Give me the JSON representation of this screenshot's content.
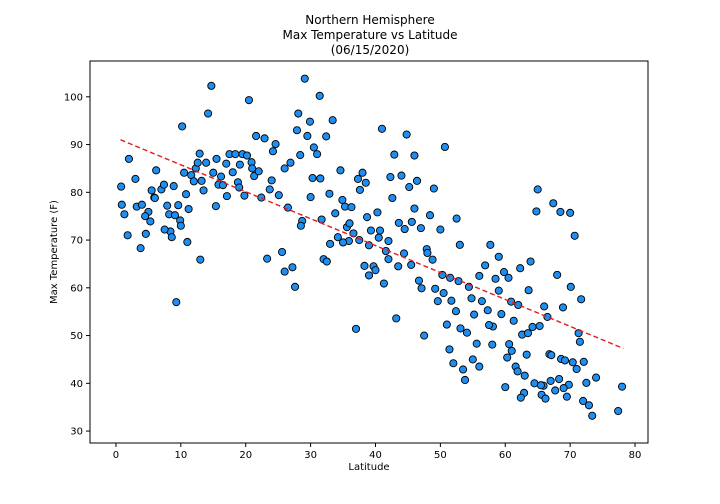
{
  "chart_data": {
    "type": "scatter",
    "title_lines": [
      "Northern Hemisphere",
      "Max Temperature vs Latitude",
      "(06/15/2020)"
    ],
    "xlabel": "Latitude",
    "ylabel": "Max Temperature (F)",
    "xlim": [
      -4,
      82
    ],
    "ylim": [
      27.5,
      107.5
    ],
    "xticks": [
      0,
      10,
      20,
      30,
      40,
      50,
      60,
      70,
      80
    ],
    "yticks": [
      30,
      40,
      50,
      60,
      70,
      80,
      90,
      100
    ],
    "grid": false,
    "marker_color": "#1f8ef1",
    "marker_edge_color": "#000000",
    "regression": {
      "color": "#e31a1c",
      "style": "dashed",
      "x": [
        0.7,
        78.2
      ],
      "y": [
        91.0,
        47.3
      ]
    },
    "points": [
      [
        0.8,
        81.2
      ],
      [
        0.9,
        77.4
      ],
      [
        1.3,
        75.4
      ],
      [
        1.8,
        71.0
      ],
      [
        3.0,
        82.8
      ],
      [
        3.2,
        77.0
      ],
      [
        3.8,
        68.3
      ],
      [
        4.0,
        77.4
      ],
      [
        4.6,
        71.3
      ],
      [
        5.0,
        75.9
      ],
      [
        5.3,
        73.9
      ],
      [
        5.5,
        80.4
      ],
      [
        5.9,
        78.9
      ],
      [
        6.2,
        84.6
      ],
      [
        7.0,
        80.6
      ],
      [
        7.4,
        81.6
      ],
      [
        7.9,
        77.2
      ],
      [
        8.2,
        75.4
      ],
      [
        8.4,
        71.8
      ],
      [
        8.6,
        70.6
      ],
      [
        8.9,
        81.3
      ],
      [
        9.1,
        75.2
      ],
      [
        9.3,
        57.0
      ],
      [
        9.6,
        77.3
      ],
      [
        9.9,
        74.1
      ],
      [
        10.2,
        93.8
      ],
      [
        10.5,
        84.1
      ],
      [
        10.8,
        79.6
      ],
      [
        11.2,
        76.5
      ],
      [
        11.6,
        83.6
      ],
      [
        12.0,
        82.3
      ],
      [
        12.3,
        85.0
      ],
      [
        12.6,
        86.2
      ],
      [
        12.9,
        88.1
      ],
      [
        13.2,
        82.4
      ],
      [
        13.5,
        80.4
      ],
      [
        13.9,
        86.2
      ],
      [
        14.2,
        96.5
      ],
      [
        14.7,
        102.3
      ],
      [
        15.0,
        84.1
      ],
      [
        15.4,
        77.1
      ],
      [
        15.8,
        81.6
      ],
      [
        16.2,
        83.3
      ],
      [
        16.5,
        81.5
      ],
      [
        17.1,
        79.2
      ],
      [
        17.5,
        88.0
      ],
      [
        18.0,
        84.2
      ],
      [
        18.4,
        88.0
      ],
      [
        18.8,
        82.1
      ],
      [
        19.1,
        85.8
      ],
      [
        19.5,
        88.0
      ],
      [
        19.8,
        79.3
      ],
      [
        20.2,
        87.7
      ],
      [
        20.5,
        99.3
      ],
      [
        20.9,
        86.3
      ],
      [
        21.3,
        83.4
      ],
      [
        21.6,
        91.8
      ],
      [
        22.0,
        84.4
      ],
      [
        22.4,
        78.9
      ],
      [
        22.9,
        91.3
      ],
      [
        23.3,
        66.1
      ],
      [
        23.7,
        80.6
      ],
      [
        24.2,
        88.6
      ],
      [
        24.6,
        90.1
      ],
      [
        25.1,
        79.4
      ],
      [
        25.6,
        67.5
      ],
      [
        26.0,
        63.4
      ],
      [
        26.5,
        76.8
      ],
      [
        26.9,
        86.2
      ],
      [
        27.2,
        64.3
      ],
      [
        27.6,
        60.2
      ],
      [
        27.9,
        93.0
      ],
      [
        28.1,
        96.5
      ],
      [
        28.4,
        87.8
      ],
      [
        28.7,
        74.0
      ],
      [
        29.1,
        103.8
      ],
      [
        29.5,
        91.8
      ],
      [
        29.9,
        94.8
      ],
      [
        30.3,
        83.0
      ],
      [
        30.5,
        89.4
      ],
      [
        31.0,
        88.0
      ],
      [
        31.4,
        100.2
      ],
      [
        31.7,
        74.3
      ],
      [
        32.0,
        66.0
      ],
      [
        32.4,
        91.7
      ],
      [
        32.9,
        79.7
      ],
      [
        33.4,
        95.1
      ],
      [
        33.8,
        75.6
      ],
      [
        34.2,
        70.6
      ],
      [
        34.6,
        84.6
      ],
      [
        34.9,
        78.4
      ],
      [
        35.3,
        77.0
      ],
      [
        35.6,
        72.7
      ],
      [
        35.9,
        69.8
      ],
      [
        36.3,
        76.9
      ],
      [
        36.6,
        71.4
      ],
      [
        37.0,
        51.4
      ],
      [
        37.3,
        82.8
      ],
      [
        37.6,
        80.5
      ],
      [
        38.0,
        84.1
      ],
      [
        38.3,
        64.6
      ],
      [
        38.7,
        74.8
      ],
      [
        39.0,
        68.9
      ],
      [
        39.3,
        72.0
      ],
      [
        39.7,
        64.5
      ],
      [
        40.0,
        63.7
      ],
      [
        40.3,
        75.8
      ],
      [
        40.7,
        72.0
      ],
      [
        41.0,
        93.3
      ],
      [
        41.3,
        60.9
      ],
      [
        41.6,
        67.7
      ],
      [
        42.0,
        69.8
      ],
      [
        42.3,
        83.2
      ],
      [
        42.6,
        78.8
      ],
      [
        42.9,
        87.9
      ],
      [
        43.2,
        53.6
      ],
      [
        43.6,
        73.6
      ],
      [
        44.0,
        83.5
      ],
      [
        44.4,
        67.2
      ],
      [
        44.8,
        92.1
      ],
      [
        45.2,
        81.1
      ],
      [
        45.6,
        73.8
      ],
      [
        46.0,
        76.6
      ],
      [
        46.4,
        82.4
      ],
      [
        46.7,
        61.5
      ],
      [
        47.1,
        59.9
      ],
      [
        47.5,
        50.0
      ],
      [
        47.9,
        68.1
      ],
      [
        48.4,
        75.2
      ],
      [
        48.8,
        65.9
      ],
      [
        49.2,
        59.8
      ],
      [
        49.6,
        57.2
      ],
      [
        50.0,
        72.2
      ],
      [
        50.3,
        62.7
      ],
      [
        50.7,
        89.5
      ],
      [
        51.0,
        52.3
      ],
      [
        51.4,
        47.1
      ],
      [
        51.7,
        57.3
      ],
      [
        52.0,
        44.2
      ],
      [
        52.4,
        55.1
      ],
      [
        52.8,
        61.4
      ],
      [
        53.1,
        51.5
      ],
      [
        53.5,
        42.9
      ],
      [
        53.8,
        40.7
      ],
      [
        54.1,
        50.6
      ],
      [
        54.4,
        60.2
      ],
      [
        54.8,
        57.8
      ],
      [
        55.2,
        54.4
      ],
      [
        55.6,
        48.3
      ],
      [
        56.0,
        62.5
      ],
      [
        56.4,
        57.2
      ],
      [
        56.9,
        64.7
      ],
      [
        57.3,
        55.3
      ],
      [
        57.7,
        69.0
      ],
      [
        58.1,
        51.9
      ],
      [
        58.5,
        61.9
      ],
      [
        59.0,
        59.4
      ],
      [
        59.4,
        54.5
      ],
      [
        59.8,
        63.3
      ],
      [
        60.0,
        39.2
      ],
      [
        60.3,
        45.4
      ],
      [
        60.6,
        48.2
      ],
      [
        60.9,
        57.1
      ],
      [
        61.3,
        53.1
      ],
      [
        61.6,
        43.5
      ],
      [
        61.9,
        42.5
      ],
      [
        62.3,
        64.1
      ],
      [
        62.6,
        50.2
      ],
      [
        62.9,
        38.0
      ],
      [
        63.3,
        46.0
      ],
      [
        63.6,
        59.5
      ],
      [
        63.9,
        65.5
      ],
      [
        64.2,
        51.8
      ],
      [
        64.5,
        40.0
      ],
      [
        64.8,
        76.0
      ],
      [
        65.0,
        80.6
      ],
      [
        65.3,
        52.0
      ],
      [
        65.6,
        37.6
      ],
      [
        65.9,
        39.5
      ],
      [
        66.2,
        36.8
      ],
      [
        66.5,
        53.9
      ],
      [
        66.8,
        46.1
      ],
      [
        67.1,
        45.9
      ],
      [
        67.4,
        77.7
      ],
      [
        67.7,
        38.5
      ],
      [
        68.0,
        62.7
      ],
      [
        68.3,
        40.9
      ],
      [
        68.6,
        45.1
      ],
      [
        68.9,
        55.9
      ],
      [
        69.2,
        44.8
      ],
      [
        69.5,
        37.2
      ],
      [
        69.8,
        39.7
      ],
      [
        70.1,
        60.2
      ],
      [
        70.4,
        44.4
      ],
      [
        70.7,
        70.9
      ],
      [
        71.0,
        43.0
      ],
      [
        71.3,
        50.5
      ],
      [
        71.7,
        57.6
      ],
      [
        72.1,
        44.5
      ],
      [
        72.5,
        40.1
      ],
      [
        72.9,
        35.4
      ],
      [
        73.4,
        33.2
      ],
      [
        74.0,
        41.2
      ],
      [
        77.4,
        34.2
      ],
      [
        78.0,
        39.3
      ],
      [
        63.0,
        41.6
      ],
      [
        62.4,
        37.0
      ],
      [
        60.5,
        62.1
      ],
      [
        58.0,
        48.1
      ],
      [
        55.0,
        45.0
      ],
      [
        46.0,
        87.7
      ],
      [
        44.5,
        72.3
      ],
      [
        43.5,
        64.5
      ],
      [
        42.0,
        66.0
      ],
      [
        40.5,
        70.5
      ],
      [
        39.0,
        62.6
      ],
      [
        38.5,
        82.0
      ],
      [
        37.5,
        70.0
      ],
      [
        36.0,
        73.5
      ],
      [
        35.0,
        69.5
      ],
      [
        33.0,
        69.2
      ],
      [
        32.5,
        65.5
      ],
      [
        31.5,
        82.9
      ],
      [
        30.0,
        79.0
      ],
      [
        28.5,
        73.0
      ],
      [
        26.0,
        85.0
      ],
      [
        24.0,
        82.5
      ],
      [
        21.0,
        85.0
      ],
      [
        19.0,
        81.0
      ],
      [
        17.0,
        86.0
      ],
      [
        15.5,
        87.0
      ],
      [
        13.0,
        65.9
      ],
      [
        11.0,
        69.6
      ],
      [
        10.0,
        73.0
      ],
      [
        7.5,
        72.2
      ],
      [
        6.0,
        78.8
      ],
      [
        4.5,
        75.0
      ],
      [
        2.0,
        87.0
      ],
      [
        49.0,
        80.8
      ],
      [
        51.5,
        62.1
      ],
      [
        52.5,
        74.5
      ],
      [
        53.0,
        69.0
      ],
      [
        56.0,
        43.5
      ],
      [
        57.5,
        52.2
      ],
      [
        59.0,
        66.5
      ],
      [
        61.0,
        46.8
      ],
      [
        62.0,
        56.4
      ],
      [
        63.5,
        50.5
      ],
      [
        65.5,
        39.6
      ],
      [
        66.0,
        56.1
      ],
      [
        67.0,
        40.5
      ],
      [
        68.5,
        75.9
      ],
      [
        69.0,
        39.0
      ],
      [
        70.0,
        75.7
      ],
      [
        71.5,
        48.7
      ],
      [
        72.0,
        36.3
      ],
      [
        45.5,
        64.8
      ],
      [
        47.0,
        72.5
      ],
      [
        48.0,
        67.3
      ],
      [
        50.5,
        58.9
      ]
    ]
  }
}
